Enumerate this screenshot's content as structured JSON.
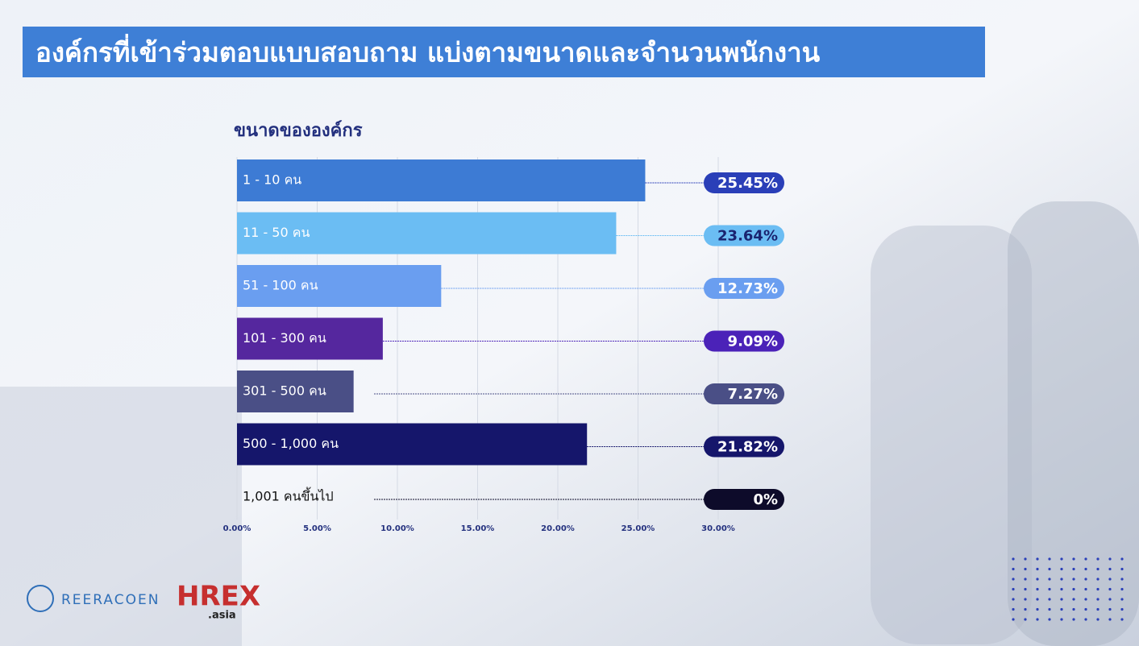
{
  "header": {
    "title": "องค์กรที่เข้าร่วมตอบแบบสอบถาม แบ่งตามขนาดและจำนวนพนักงาน"
  },
  "chart_data": {
    "type": "hbar",
    "title": "ขนาดขององค์กร",
    "categories": [
      "1 - 10 คน",
      "11 - 50 คน",
      "51 - 100 คน",
      "101 - 300 คน",
      "301 - 500 คน",
      "500 - 1,000 คน",
      "1,001 คนขึ้นไป"
    ],
    "values": [
      25.45,
      23.64,
      12.73,
      9.09,
      7.27,
      21.82,
      0
    ],
    "value_labels": [
      "25.45%",
      "23.64%",
      "12.73%",
      "9.09%",
      "7.27%",
      "21.82%",
      "0%"
    ],
    "colors": [
      "#3d7bd4",
      "#6bbdf3",
      "#6a9ef0",
      "#55279e",
      "#4a4f86",
      "#15166b",
      "#0d0b2a"
    ],
    "label_colors": [
      "#2a3fb8",
      "#6bbdf3",
      "#6a9ef0",
      "#4b22b8",
      "#4a4f86",
      "#15166b",
      "#0d0b2a"
    ],
    "xlim": [
      0,
      30
    ],
    "xticks": [
      {
        "value": 0,
        "label": "0.00%"
      },
      {
        "value": 5,
        "label": "5.00%"
      },
      {
        "value": 10,
        "label": "10.00%"
      },
      {
        "value": 15,
        "label": "15.00%"
      },
      {
        "value": 20,
        "label": "20.00%"
      },
      {
        "value": 25,
        "label": "25.00%"
      },
      {
        "value": 30,
        "label": "30.00%"
      }
    ],
    "grid": true
  },
  "logos": {
    "reeracoen": "REERACOEN",
    "hrex": "HREX",
    "hrex_sub": ".asia"
  }
}
